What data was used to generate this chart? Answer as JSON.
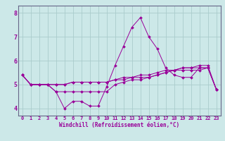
{
  "xlabel": "Windchill (Refroidissement éolien,°C)",
  "bg_color": "#cce8e8",
  "grid_color": "#aacccc",
  "line_color": "#990099",
  "spine_color": "#666688",
  "xlim": [
    -0.5,
    23.5
  ],
  "ylim": [
    3.7,
    8.3
  ],
  "yticks": [
    4,
    5,
    6,
    7,
    8
  ],
  "xtick_labels": [
    "0",
    "1",
    "2",
    "3",
    "4",
    "5",
    "6",
    "7",
    "8",
    "9",
    "10",
    "11",
    "12",
    "13",
    "14",
    "15",
    "16",
    "17",
    "18",
    "19",
    "20",
    "21",
    "22",
    "23"
  ],
  "series": [
    [
      5.4,
      5.0,
      5.0,
      5.0,
      4.7,
      4.0,
      4.3,
      4.3,
      4.1,
      4.1,
      4.9,
      5.8,
      6.6,
      7.4,
      7.8,
      7.0,
      6.5,
      5.7,
      5.4,
      5.3,
      5.3,
      5.7,
      5.7,
      4.8
    ],
    [
      5.4,
      5.0,
      5.0,
      5.0,
      4.7,
      4.7,
      4.7,
      4.7,
      4.7,
      4.7,
      4.7,
      5.0,
      5.1,
      5.2,
      5.2,
      5.3,
      5.4,
      5.5,
      5.6,
      5.7,
      5.7,
      5.7,
      5.7,
      4.8
    ],
    [
      5.4,
      5.0,
      5.0,
      5.0,
      5.0,
      5.0,
      5.1,
      5.1,
      5.1,
      5.1,
      5.1,
      5.2,
      5.2,
      5.3,
      5.3,
      5.3,
      5.4,
      5.5,
      5.6,
      5.6,
      5.6,
      5.6,
      5.7,
      4.8
    ],
    [
      5.4,
      5.0,
      5.0,
      5.0,
      5.0,
      5.0,
      5.1,
      5.1,
      5.1,
      5.1,
      5.1,
      5.2,
      5.3,
      5.3,
      5.4,
      5.4,
      5.5,
      5.6,
      5.6,
      5.7,
      5.7,
      5.8,
      5.8,
      4.8
    ]
  ]
}
